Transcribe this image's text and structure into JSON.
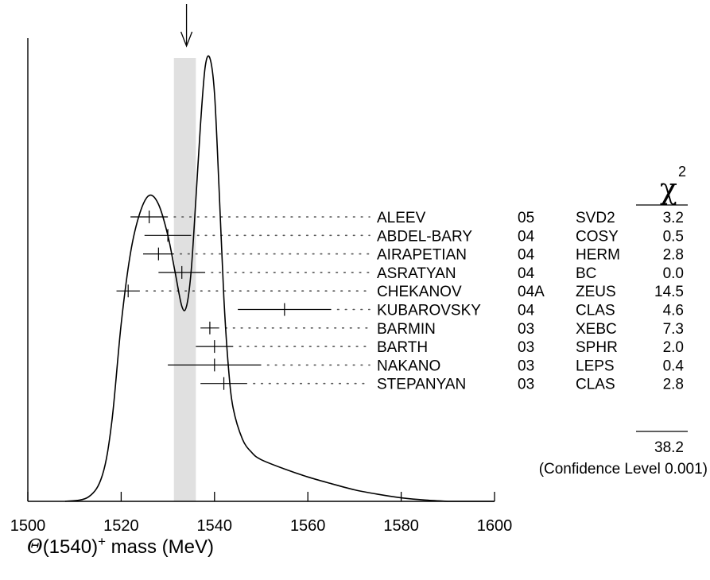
{
  "chart_data": {
    "type": "scatter",
    "xlabel_symbol": "Θ",
    "xlabel_rest": "(1540)",
    "xlabel_sup": "+",
    "xlabel_unit": " mass (MeV)",
    "xlim": [
      1500,
      1600
    ],
    "xticks": [
      1500,
      1520,
      1540,
      1560,
      1580,
      1600
    ],
    "ideogram_curve": [
      [
        1508,
        0.0
      ],
      [
        1513,
        0.01
      ],
      [
        1516,
        0.06
      ],
      [
        1518,
        0.18
      ],
      [
        1520,
        0.4
      ],
      [
        1522,
        0.56
      ],
      [
        1524,
        0.65
      ],
      [
        1526,
        0.69
      ],
      [
        1528,
        0.67
      ],
      [
        1530,
        0.6
      ],
      [
        1531.5,
        0.52
      ],
      [
        1533,
        0.44
      ],
      [
        1534,
        0.44
      ],
      [
        1535,
        0.52
      ],
      [
        1536,
        0.68
      ],
      [
        1537,
        0.85
      ],
      [
        1538,
        0.98
      ],
      [
        1539,
        1.0
      ],
      [
        1540,
        0.92
      ],
      [
        1541,
        0.7
      ],
      [
        1542,
        0.46
      ],
      [
        1543,
        0.3
      ],
      [
        1544,
        0.21
      ],
      [
        1546,
        0.14
      ],
      [
        1548,
        0.11
      ],
      [
        1550,
        0.094
      ],
      [
        1555,
        0.073
      ],
      [
        1560,
        0.055
      ],
      [
        1565,
        0.04
      ],
      [
        1570,
        0.026
      ],
      [
        1575,
        0.016
      ],
      [
        1580,
        0.008
      ],
      [
        1585,
        0.003
      ],
      [
        1590,
        0.0
      ]
    ],
    "highlight_band": [
      1531.3,
      1536.0
    ],
    "arrow_at": 1534,
    "chi2_header": "χ",
    "chi2_header_sup": "2",
    "entries": [
      {
        "author": "ALEEV",
        "year": "05",
        "exp": "SVD2",
        "chi2": "3.2",
        "mass": 1526,
        "err": 4
      },
      {
        "author": "ABDEL-BARY",
        "year": "04",
        "exp": "COSY",
        "chi2": "0.5",
        "mass": 1530,
        "err": 5
      },
      {
        "author": "AIRAPETIAN",
        "year": "04",
        "exp": "HERM",
        "chi2": "2.8",
        "mass": 1528,
        "err": 3.3
      },
      {
        "author": "ASRATYAN",
        "year": "04",
        "exp": "BC",
        "chi2": "0.0",
        "mass": 1533,
        "err": 5
      },
      {
        "author": "CHEKANOV",
        "year": "04A",
        "exp": "ZEUS",
        "chi2": "14.5",
        "mass": 1521.5,
        "err": 2.5
      },
      {
        "author": "KUBAROVSKY",
        "year": "04",
        "exp": "CLAS",
        "chi2": "4.6",
        "mass": 1555,
        "err": 10
      },
      {
        "author": "BARMIN",
        "year": "03",
        "exp": "XEBC",
        "chi2": "7.3",
        "mass": 1539,
        "err": 2
      },
      {
        "author": "BARTH",
        "year": "03",
        "exp": "SPHR",
        "chi2": "2.0",
        "mass": 1540,
        "err": 4
      },
      {
        "author": "NAKANO",
        "year": "03",
        "exp": "LEPS",
        "chi2": "0.4",
        "mass": 1540,
        "err": 10
      },
      {
        "author": "STEPANYAN",
        "year": "03",
        "exp": "CLAS",
        "chi2": "2.8",
        "mass": 1542,
        "err": 5
      }
    ],
    "chi2_total": "38.2",
    "confidence_text": "(Confidence Level  0.001)"
  }
}
